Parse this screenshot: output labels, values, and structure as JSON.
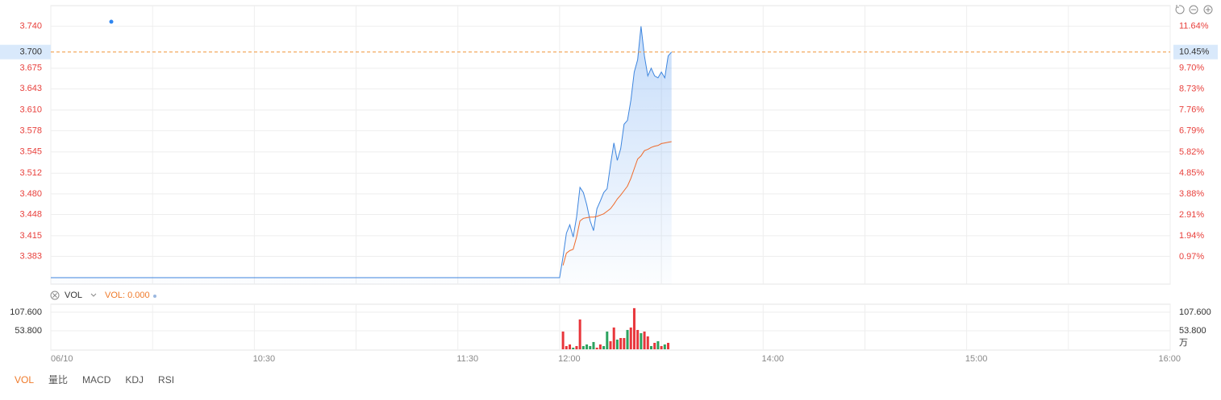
{
  "chart_data": [
    {
      "type": "line",
      "xlim": [
        0,
        330
      ],
      "xticks": [
        {
          "value": 0,
          "label": "06/10"
        },
        {
          "value": 30,
          "label": null
        },
        {
          "value": 60,
          "label": "10:30"
        },
        {
          "value": 90,
          "label": null
        },
        {
          "value": 120,
          "label": "11:30"
        },
        {
          "value": 150,
          "label": "12:00"
        },
        {
          "value": 180,
          "label": null
        },
        {
          "value": 210,
          "label": "14:00"
        },
        {
          "value": 240,
          "label": null
        },
        {
          "value": 270,
          "label": "15:00"
        },
        {
          "value": 300,
          "label": null
        },
        {
          "value": 330,
          "label": "16:00"
        }
      ],
      "ylim": [
        3.34,
        3.772
      ],
      "yticks": [
        {
          "value": 3.74,
          "label": "3.740"
        },
        3.675,
        3.643,
        {
          "value": 3.61,
          "label": "3.610"
        },
        3.578,
        3.545,
        3.512,
        {
          "value": 3.48,
          "label": "3.480"
        },
        3.448,
        3.415,
        3.383
      ],
      "y2lim": [
        -0.3,
        12.6
      ],
      "y2ticks": [
        {
          "value": 11.64,
          "label": "11.64%"
        },
        {
          "value": 9.7,
          "label": "9.70%"
        },
        {
          "value": 8.73,
          "label": "8.73%"
        },
        {
          "value": 7.76,
          "label": "7.76%"
        },
        {
          "value": 6.79,
          "label": "6.79%"
        },
        {
          "value": 5.82,
          "label": "5.82%"
        },
        {
          "value": 4.85,
          "label": "4.85%"
        },
        {
          "value": 3.88,
          "label": "3.88%"
        },
        {
          "value": 2.91,
          "label": "2.91%"
        },
        {
          "value": 1.94,
          "label": "1.94%"
        },
        {
          "value": 0.97,
          "label": "0.97%"
        }
      ],
      "grid": true,
      "fill": true,
      "x": [
        0,
        150,
        151,
        152,
        153,
        154,
        155,
        156,
        157,
        158,
        159,
        160,
        161,
        162,
        163,
        164,
        165,
        166,
        167,
        168,
        169,
        170,
        171,
        172,
        173,
        174,
        175,
        176,
        177,
        178,
        179,
        180,
        181,
        182,
        183
      ],
      "series": [
        {
          "color": "#3d85de",
          "values": [
            3.35,
            3.35,
            3.382,
            3.419,
            3.432,
            3.413,
            3.444,
            3.49,
            3.482,
            3.463,
            3.438,
            3.423,
            3.457,
            3.469,
            3.482,
            3.488,
            3.525,
            3.559,
            3.532,
            3.55,
            3.588,
            3.594,
            3.625,
            3.669,
            3.688,
            3.74,
            3.694,
            3.663,
            3.675,
            3.663,
            3.66,
            3.669,
            3.66,
            3.694,
            3.7
          ]
        },
        {
          "color": "#ef6a2a",
          "values": [
            null,
            null,
            3.369,
            3.388,
            3.392,
            3.394,
            3.413,
            3.438,
            3.442,
            3.443,
            3.444,
            3.444,
            3.445,
            3.447,
            3.449,
            3.453,
            3.457,
            3.464,
            3.472,
            3.478,
            3.485,
            3.492,
            3.504,
            3.519,
            3.534,
            3.539,
            3.547,
            3.549,
            3.552,
            3.554,
            3.555,
            3.558,
            3.559,
            3.56,
            3.561
          ]
        }
      ],
      "ref_line": {
        "value": 3.7,
        "label": "3.700",
        "y2_value": 10.45,
        "y2_label": "10.45%",
        "color": "#f0963c"
      }
    },
    {
      "type": "bar",
      "title": "VOL",
      "legend": "VOL: 0.000",
      "unit": "万",
      "xlim": [
        0,
        330
      ],
      "ylim": [
        0,
        126
      ],
      "yticks": [
        {
          "value": 107.6,
          "label": "107.600"
        },
        {
          "value": 53.8,
          "label": "53.800"
        }
      ],
      "x": [
        151,
        152,
        153,
        154,
        155,
        156,
        157,
        158,
        159,
        160,
        161,
        162,
        163,
        164,
        165,
        166,
        167,
        168,
        169,
        170,
        171,
        172,
        173,
        174,
        175,
        176,
        177,
        178,
        179,
        180,
        181,
        182
      ],
      "values": [
        51.5,
        9.4,
        14.0,
        4.7,
        9.4,
        86.5,
        9.4,
        14.0,
        9.4,
        21.1,
        4.7,
        14.0,
        9.4,
        51.5,
        23.4,
        63.2,
        28.1,
        32.7,
        32.7,
        56.1,
        63.2,
        119.3,
        56.1,
        46.8,
        51.5,
        37.4,
        9.4,
        18.7,
        23.4,
        9.4,
        14.0,
        18.7
      ],
      "colors": [
        "#e8363b",
        "#e8363b",
        "#e8363b",
        "#2ca25f",
        "#e8363b",
        "#e8363b",
        "#2ca25f",
        "#2ca25f",
        "#2ca25f",
        "#2ca25f",
        "#e8363b",
        "#e8363b",
        "#2ca25f",
        "#2ca25f",
        "#e8363b",
        "#e8363b",
        "#2ca25f",
        "#e8363b",
        "#e8363b",
        "#2ca25f",
        "#e8363b",
        "#e8363b",
        "#e8363b",
        "#2ca25f",
        "#e8363b",
        "#e8363b",
        "#2ca25f",
        "#e8363b",
        "#2ca25f",
        "#e8363b",
        "#2ca25f",
        "#e8363b"
      ]
    }
  ],
  "tabs": [
    "VOL",
    "量比",
    "MACD",
    "KDJ",
    "RSI"
  ]
}
